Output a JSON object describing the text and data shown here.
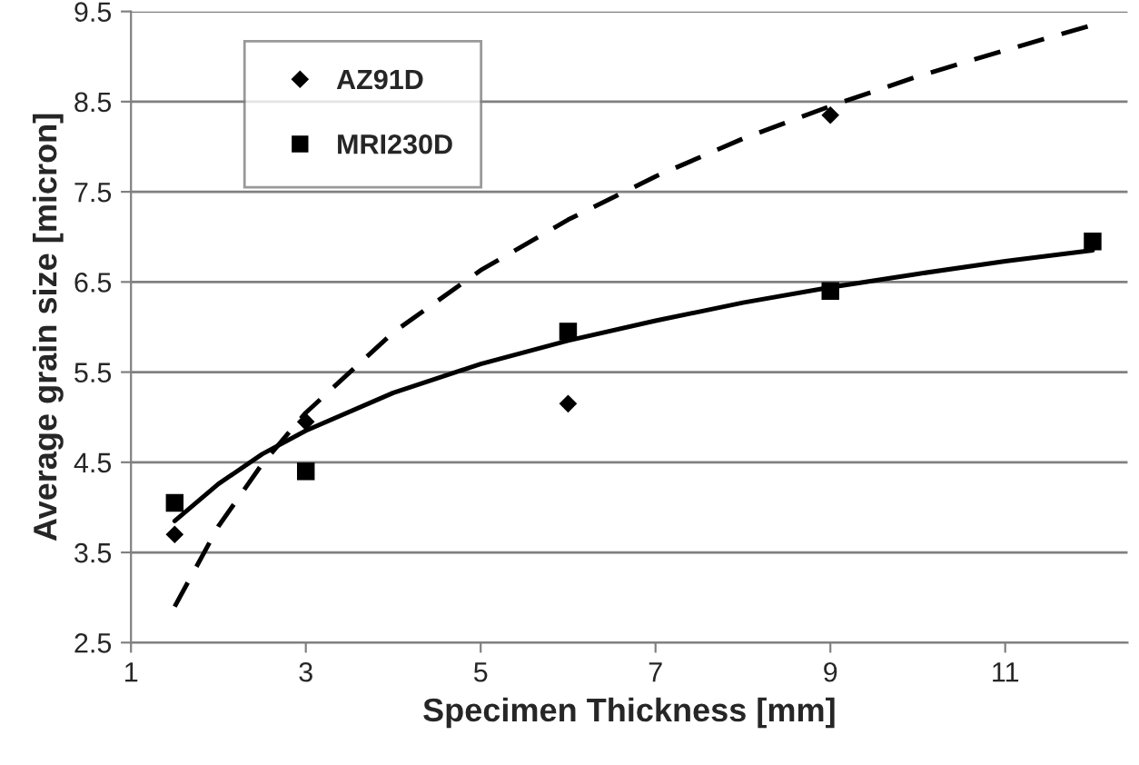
{
  "chart_data": {
    "type": "scatter",
    "xlabel": "Specimen Thickness [mm]",
    "ylabel": "Average grain size [micron]",
    "xlim": [
      1,
      12.4
    ],
    "xticks": [
      1,
      3,
      5,
      7,
      9,
      11
    ],
    "ylim": [
      2.5,
      9.5
    ],
    "yticks": [
      2.5,
      3.5,
      4.5,
      5.5,
      6.5,
      7.5,
      8.5,
      9.5
    ],
    "grid": "y",
    "legend": "top left",
    "series": [
      {
        "name": "AZ91D",
        "marker": "diamond",
        "color": "#000000",
        "x": [
          1.5,
          3,
          6,
          9
        ],
        "values": [
          3.7,
          4.95,
          5.15,
          8.35
        ]
      },
      {
        "name": "MRI230D",
        "marker": "square",
        "color": "#000000",
        "x": [
          1.5,
          3,
          6,
          9,
          12
        ],
        "values": [
          4.05,
          4.4,
          5.95,
          6.4,
          6.95
        ]
      },
      {
        "type": "line",
        "line_style": "dashed",
        "marker": "none",
        "color": "#000000",
        "x": [
          1.5,
          2,
          2.5,
          3,
          4,
          5,
          6,
          7,
          8,
          9,
          10,
          11,
          12
        ],
        "values": [
          2.9,
          3.79,
          4.48,
          5.05,
          5.94,
          6.63,
          7.19,
          7.67,
          8.09,
          8.45,
          8.78,
          9.07,
          9.35
        ]
      },
      {
        "type": "line",
        "line_style": "solid",
        "marker": "none",
        "color": "#000000",
        "x": [
          1.5,
          2,
          2.5,
          3,
          4,
          5,
          6,
          7,
          8,
          9,
          10,
          11,
          12
        ],
        "values": [
          3.85,
          4.26,
          4.59,
          4.85,
          5.27,
          5.59,
          5.85,
          6.07,
          6.27,
          6.44,
          6.59,
          6.73,
          6.85
        ]
      }
    ]
  }
}
